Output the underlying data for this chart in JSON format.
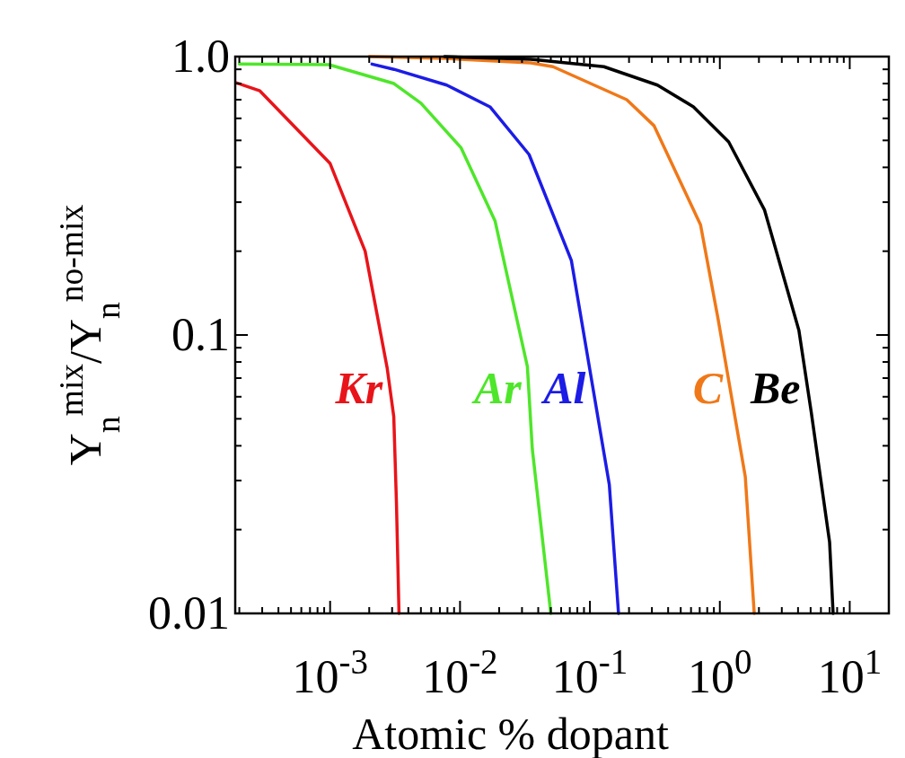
{
  "chart_data": {
    "type": "line",
    "log": "xy",
    "xlabel": "Atomic % dopant",
    "ylabel": "Y$_{n}$$^{mix}$/Y$_{n}$$^{no-mix}$",
    "xlim": [
      0.000186,
      20
    ],
    "ylim": [
      0.01,
      1
    ],
    "xticks": [
      {
        "value": 0.0002,
        "label": null
      },
      {
        "value": 0.0003,
        "label": null
      },
      {
        "value": 0.0004,
        "label": null
      },
      {
        "value": 0.0005,
        "label": null
      },
      {
        "value": 0.0006,
        "label": null
      },
      {
        "value": 0.0007,
        "label": null
      },
      {
        "value": 0.0008,
        "label": null
      },
      {
        "value": 0.0009,
        "label": null
      },
      {
        "value": 0.001,
        "label": "10$^{-3}$"
      },
      {
        "value": 0.002,
        "label": null
      },
      {
        "value": 0.003,
        "label": null
      },
      {
        "value": 0.004,
        "label": null
      },
      {
        "value": 0.005,
        "label": null
      },
      {
        "value": 0.006,
        "label": null
      },
      {
        "value": 0.007,
        "label": null
      },
      {
        "value": 0.008,
        "label": null
      },
      {
        "value": 0.009,
        "label": null
      },
      {
        "value": 0.01,
        "label": "10$^{-2}$"
      },
      {
        "value": 0.02,
        "label": null
      },
      {
        "value": 0.03,
        "label": null
      },
      {
        "value": 0.04,
        "label": null
      },
      {
        "value": 0.05,
        "label": null
      },
      {
        "value": 0.06,
        "label": null
      },
      {
        "value": 0.07,
        "label": null
      },
      {
        "value": 0.08,
        "label": null
      },
      {
        "value": 0.09,
        "label": null
      },
      {
        "value": 0.1,
        "label": "10$^{-1}$"
      },
      {
        "value": 0.2,
        "label": null
      },
      {
        "value": 0.3,
        "label": null
      },
      {
        "value": 0.4,
        "label": null
      },
      {
        "value": 0.5,
        "label": null
      },
      {
        "value": 0.6,
        "label": null
      },
      {
        "value": 0.7,
        "label": null
      },
      {
        "value": 0.8,
        "label": null
      },
      {
        "value": 0.9,
        "label": null
      },
      {
        "value": 1,
        "label": "10$^{0}$"
      },
      {
        "value": 2,
        "label": null
      },
      {
        "value": 3,
        "label": null
      },
      {
        "value": 4,
        "label": null
      },
      {
        "value": 5,
        "label": null
      },
      {
        "value": 6,
        "label": null
      },
      {
        "value": 7,
        "label": null
      },
      {
        "value": 8,
        "label": null
      },
      {
        "value": 9,
        "label": null
      },
      {
        "value": 10,
        "label": "10$^{1}$"
      }
    ],
    "yticks": [
      {
        "value": 0.01,
        "label": "0.01"
      },
      {
        "value": 0.02,
        "label": null
      },
      {
        "value": 0.03,
        "label": null
      },
      {
        "value": 0.04,
        "label": null
      },
      {
        "value": 0.05,
        "label": null
      },
      {
        "value": 0.06,
        "label": null
      },
      {
        "value": 0.07,
        "label": null
      },
      {
        "value": 0.08,
        "label": null
      },
      {
        "value": 0.09,
        "label": null
      },
      {
        "value": 0.1,
        "label": "0.1"
      },
      {
        "value": 0.2,
        "label": null
      },
      {
        "value": 0.3,
        "label": null
      },
      {
        "value": 0.4,
        "label": null
      },
      {
        "value": 0.5,
        "label": null
      },
      {
        "value": 0.6,
        "label": null
      },
      {
        "value": 0.7,
        "label": null
      },
      {
        "value": 0.8,
        "label": null
      },
      {
        "value": 0.9,
        "label": null
      },
      {
        "value": 1,
        "label": "1.0"
      }
    ],
    "series": [
      {
        "name": "Kr",
        "color": "#e8141a",
        "x": [
          0.000189,
          0.000288,
          0.001,
          0.00186,
          0.00275,
          0.00309,
          0.00324,
          0.00339
        ],
        "values": [
          0.805,
          0.753,
          0.413,
          0.2,
          0.076,
          0.051,
          0.025,
          0.01
        ]
      },
      {
        "name": "Ar",
        "color": "#4ee62a",
        "x": [
          0.0002,
          0.00098,
          0.0031,
          0.005,
          0.0102,
          0.0186,
          0.033,
          0.036,
          0.05
        ],
        "values": [
          0.94,
          0.935,
          0.8,
          0.68,
          0.47,
          0.257,
          0.077,
          0.039,
          0.01
        ]
      },
      {
        "name": "Al",
        "color": "#1c1ce6",
        "x": [
          0.0021,
          0.0031,
          0.0079,
          0.017,
          0.034,
          0.072,
          0.141,
          0.166
        ],
        "values": [
          0.94,
          0.9,
          0.79,
          0.66,
          0.445,
          0.185,
          0.029,
          0.01
        ]
      },
      {
        "name": "C",
        "color": "#f07818",
        "x": [
          0.002,
          0.0076,
          0.035,
          0.052,
          0.192,
          0.311,
          0.71,
          0.97,
          1.57,
          1.84
        ],
        "values": [
          1.0,
          0.985,
          0.95,
          0.92,
          0.7,
          0.565,
          0.249,
          0.114,
          0.031,
          0.01
        ]
      },
      {
        "name": "Be",
        "color": "#000000",
        "x": [
          0.0076,
          0.035,
          0.128,
          0.331,
          0.627,
          1.17,
          2.21,
          4.06,
          5.05,
          7.0,
          7.45
        ],
        "values": [
          1.0,
          0.978,
          0.92,
          0.79,
          0.66,
          0.494,
          0.281,
          0.104,
          0.053,
          0.018,
          0.01
        ]
      }
    ]
  }
}
